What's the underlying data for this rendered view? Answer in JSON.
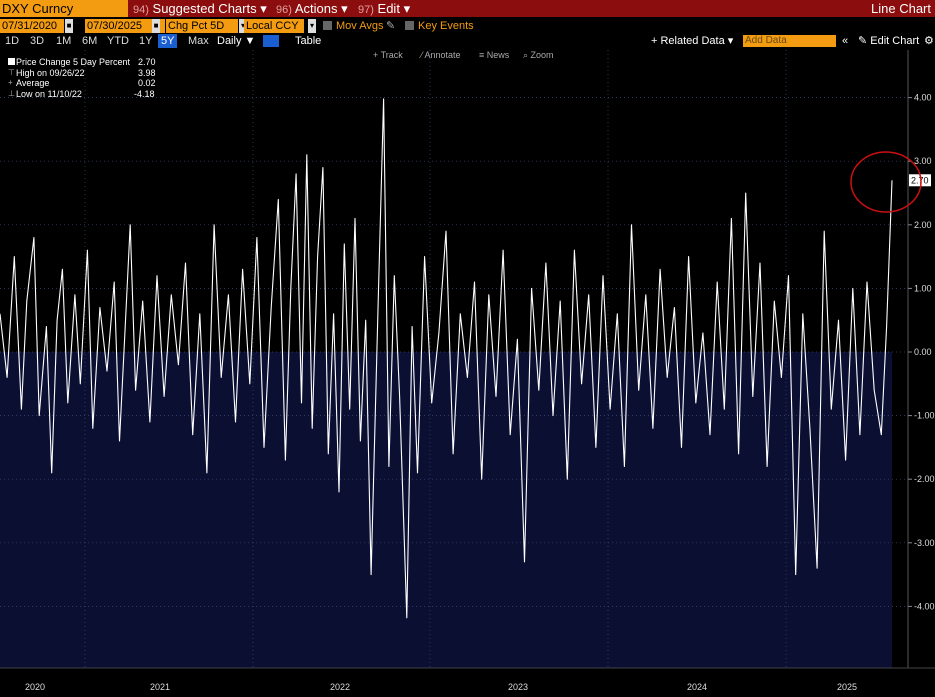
{
  "header": {
    "ticker": "DXY Curncy",
    "menus": [
      {
        "num": "94)",
        "label": "Suggested Charts",
        "caret": "▾"
      },
      {
        "num": "96)",
        "label": "Actions",
        "caret": "▾"
      },
      {
        "num": "97)",
        "label": "Edit",
        "caret": "▾"
      }
    ],
    "chart_kind": "Line Chart"
  },
  "toolbar": {
    "start_date": "07/31/2020",
    "end_date": "07/30/2025",
    "field": "Chg Pct 5D",
    "currency": "Local CCY",
    "mov_avgs": "Mov Avgs",
    "key_events": "Key Events"
  },
  "periods": [
    "1D",
    "3D",
    "1M",
    "6M",
    "YTD",
    "1Y",
    "5Y",
    "Max"
  ],
  "selected_period": "5Y",
  "frequency": "Daily",
  "table_label": "Table",
  "related_data": "+ Related Data",
  "add_data_placeholder": "Add Data",
  "edit_chart": "Edit Chart",
  "chart_tools": {
    "track": "Track",
    "annotate": "Annotate",
    "news": "News",
    "zoom": "Zoom"
  },
  "legend": {
    "series_label": "Price Change 5 Day Percent",
    "series_value": "2.70",
    "high_label": "High on 09/26/22",
    "high_value": "3.98",
    "avg_label": "Average",
    "avg_value": "0.02",
    "low_label": "Low on 11/10/22",
    "low_value": "-4.18"
  },
  "last_value_label": "2.70",
  "colors": {
    "line": "#ffffff",
    "area": "#0b1033",
    "accent": "#f39c12",
    "header": "#8b0d0d",
    "annotation": "#cc1010"
  },
  "chart_data": {
    "type": "area",
    "series_name": "Price Change 5 Day Percent",
    "ylim": [
      -5,
      5
    ],
    "ytick_values": [
      4,
      3,
      2,
      1,
      0,
      -1,
      -2,
      -3,
      -4
    ],
    "ytick_labels": [
      "4.00",
      "3.00",
      "2.00",
      "1.00",
      "0.00",
      "-1.00",
      "-2.00",
      "-3.00",
      "-4.00"
    ],
    "xlim": [
      2020.58,
      2025.58
    ],
    "x_ticks": [
      {
        "label": "2020",
        "year": 2020.75
      },
      {
        "label": "2021",
        "year": 2021.5
      },
      {
        "label": "2022",
        "year": 2022.5
      },
      {
        "label": "2023",
        "year": 2023.5
      },
      {
        "label": "2024",
        "year": 2024.5
      },
      {
        "label": "2025",
        "year": 2025.42
      }
    ],
    "grid": true,
    "points": [
      {
        "x": 2020.58,
        "y": 0.6
      },
      {
        "x": 2020.62,
        "y": -0.4
      },
      {
        "x": 2020.66,
        "y": 1.5
      },
      {
        "x": 2020.7,
        "y": -0.9
      },
      {
        "x": 2020.73,
        "y": 0.8
      },
      {
        "x": 2020.77,
        "y": 1.8
      },
      {
        "x": 2020.8,
        "y": -1.0
      },
      {
        "x": 2020.84,
        "y": 0.4
      },
      {
        "x": 2020.87,
        "y": -1.9
      },
      {
        "x": 2020.9,
        "y": 0.5
      },
      {
        "x": 2020.93,
        "y": 1.3
      },
      {
        "x": 2020.96,
        "y": -0.8
      },
      {
        "x": 2021.0,
        "y": 0.9
      },
      {
        "x": 2021.03,
        "y": -0.5
      },
      {
        "x": 2021.07,
        "y": 1.6
      },
      {
        "x": 2021.1,
        "y": -1.2
      },
      {
        "x": 2021.14,
        "y": 0.7
      },
      {
        "x": 2021.18,
        "y": -0.3
      },
      {
        "x": 2021.22,
        "y": 1.1
      },
      {
        "x": 2021.25,
        "y": -1.4
      },
      {
        "x": 2021.28,
        "y": 0.3
      },
      {
        "x": 2021.31,
        "y": 2.0
      },
      {
        "x": 2021.34,
        "y": -0.6
      },
      {
        "x": 2021.38,
        "y": 0.8
      },
      {
        "x": 2021.42,
        "y": -1.1
      },
      {
        "x": 2021.46,
        "y": 1.2
      },
      {
        "x": 2021.5,
        "y": -0.7
      },
      {
        "x": 2021.54,
        "y": 0.9
      },
      {
        "x": 2021.58,
        "y": -0.2
      },
      {
        "x": 2021.62,
        "y": 1.4
      },
      {
        "x": 2021.66,
        "y": -1.3
      },
      {
        "x": 2021.7,
        "y": 0.6
      },
      {
        "x": 2021.74,
        "y": -1.9
      },
      {
        "x": 2021.78,
        "y": 2.0
      },
      {
        "x": 2021.82,
        "y": -0.4
      },
      {
        "x": 2021.86,
        "y": 0.9
      },
      {
        "x": 2021.9,
        "y": -1.1
      },
      {
        "x": 2021.94,
        "y": 1.3
      },
      {
        "x": 2021.98,
        "y": -0.5
      },
      {
        "x": 2022.02,
        "y": 1.8
      },
      {
        "x": 2022.06,
        "y": -1.5
      },
      {
        "x": 2022.1,
        "y": 0.7
      },
      {
        "x": 2022.14,
        "y": 2.4
      },
      {
        "x": 2022.18,
        "y": -1.7
      },
      {
        "x": 2022.21,
        "y": 1.0
      },
      {
        "x": 2022.24,
        "y": 2.8
      },
      {
        "x": 2022.27,
        "y": -0.8
      },
      {
        "x": 2022.3,
        "y": 3.1
      },
      {
        "x": 2022.33,
        "y": -1.2
      },
      {
        "x": 2022.36,
        "y": 1.5
      },
      {
        "x": 2022.39,
        "y": 2.9
      },
      {
        "x": 2022.42,
        "y": -1.6
      },
      {
        "x": 2022.45,
        "y": 0.6
      },
      {
        "x": 2022.48,
        "y": -2.2
      },
      {
        "x": 2022.51,
        "y": 1.7
      },
      {
        "x": 2022.54,
        "y": -0.9
      },
      {
        "x": 2022.57,
        "y": 2.1
      },
      {
        "x": 2022.6,
        "y": -1.4
      },
      {
        "x": 2022.63,
        "y": 0.5
      },
      {
        "x": 2022.66,
        "y": -3.5
      },
      {
        "x": 2022.7,
        "y": 0.8
      },
      {
        "x": 2022.73,
        "y": 3.98
      },
      {
        "x": 2022.76,
        "y": -1.8
      },
      {
        "x": 2022.79,
        "y": 1.2
      },
      {
        "x": 2022.82,
        "y": -0.7
      },
      {
        "x": 2022.86,
        "y": -4.18
      },
      {
        "x": 2022.89,
        "y": 0.4
      },
      {
        "x": 2022.92,
        "y": -1.9
      },
      {
        "x": 2022.96,
        "y": 1.5
      },
      {
        "x": 2023.0,
        "y": -0.8
      },
      {
        "x": 2023.04,
        "y": 0.3
      },
      {
        "x": 2023.08,
        "y": 1.9
      },
      {
        "x": 2023.12,
        "y": -1.6
      },
      {
        "x": 2023.16,
        "y": 0.6
      },
      {
        "x": 2023.2,
        "y": -0.4
      },
      {
        "x": 2023.24,
        "y": 1.1
      },
      {
        "x": 2023.28,
        "y": -2.0
      },
      {
        "x": 2023.32,
        "y": 0.9
      },
      {
        "x": 2023.36,
        "y": -0.7
      },
      {
        "x": 2023.4,
        "y": 1.6
      },
      {
        "x": 2023.44,
        "y": -1.3
      },
      {
        "x": 2023.48,
        "y": 0.2
      },
      {
        "x": 2023.52,
        "y": -3.3
      },
      {
        "x": 2023.56,
        "y": 1.0
      },
      {
        "x": 2023.6,
        "y": -0.6
      },
      {
        "x": 2023.64,
        "y": 1.4
      },
      {
        "x": 2023.68,
        "y": -1.0
      },
      {
        "x": 2023.72,
        "y": 0.8
      },
      {
        "x": 2023.76,
        "y": -2.0
      },
      {
        "x": 2023.8,
        "y": 1.6
      },
      {
        "x": 2023.84,
        "y": -0.5
      },
      {
        "x": 2023.88,
        "y": 0.9
      },
      {
        "x": 2023.92,
        "y": -1.5
      },
      {
        "x": 2023.96,
        "y": 1.2
      },
      {
        "x": 2024.0,
        "y": -0.9
      },
      {
        "x": 2024.04,
        "y": 0.6
      },
      {
        "x": 2024.08,
        "y": -1.8
      },
      {
        "x": 2024.12,
        "y": 2.0
      },
      {
        "x": 2024.16,
        "y": -0.6
      },
      {
        "x": 2024.2,
        "y": 0.9
      },
      {
        "x": 2024.24,
        "y": -1.2
      },
      {
        "x": 2024.28,
        "y": 1.3
      },
      {
        "x": 2024.32,
        "y": -0.4
      },
      {
        "x": 2024.36,
        "y": 0.7
      },
      {
        "x": 2024.4,
        "y": -1.5
      },
      {
        "x": 2024.44,
        "y": 1.5
      },
      {
        "x": 2024.48,
        "y": -0.8
      },
      {
        "x": 2024.52,
        "y": 0.3
      },
      {
        "x": 2024.56,
        "y": -1.3
      },
      {
        "x": 2024.6,
        "y": 1.1
      },
      {
        "x": 2024.64,
        "y": -0.9
      },
      {
        "x": 2024.68,
        "y": 2.1
      },
      {
        "x": 2024.72,
        "y": -1.6
      },
      {
        "x": 2024.76,
        "y": 2.5
      },
      {
        "x": 2024.8,
        "y": -0.7
      },
      {
        "x": 2024.84,
        "y": 1.4
      },
      {
        "x": 2024.88,
        "y": -1.8
      },
      {
        "x": 2024.92,
        "y": 0.8
      },
      {
        "x": 2024.96,
        "y": -0.4
      },
      {
        "x": 2025.0,
        "y": 1.2
      },
      {
        "x": 2025.04,
        "y": -3.5
      },
      {
        "x": 2025.08,
        "y": 0.6
      },
      {
        "x": 2025.12,
        "y": -1.2
      },
      {
        "x": 2025.16,
        "y": -3.4
      },
      {
        "x": 2025.2,
        "y": 1.9
      },
      {
        "x": 2025.24,
        "y": -0.9
      },
      {
        "x": 2025.28,
        "y": 0.5
      },
      {
        "x": 2025.32,
        "y": -1.7
      },
      {
        "x": 2025.36,
        "y": 1.0
      },
      {
        "x": 2025.4,
        "y": -1.3
      },
      {
        "x": 2025.44,
        "y": 1.1
      },
      {
        "x": 2025.48,
        "y": -0.6
      },
      {
        "x": 2025.52,
        "y": -1.3
      },
      {
        "x": 2025.55,
        "y": 0.4
      },
      {
        "x": 2025.58,
        "y": 2.7
      }
    ]
  }
}
